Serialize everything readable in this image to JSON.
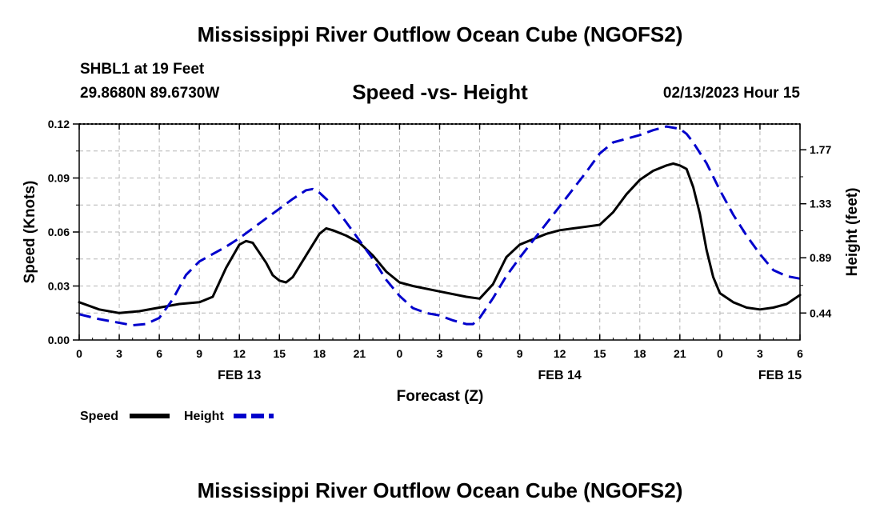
{
  "page": {
    "title": "Mississippi River Outflow Ocean Cube (NGOFS2)",
    "title_repeat": "Mississippi River Outflow Ocean Cube (NGOFS2)",
    "station": "SHBL1 at 19 Feet",
    "coords": "29.8680N  89.6730W",
    "subtitle": "Speed -vs- Height",
    "datestamp": "02/13/2023 Hour 15"
  },
  "colors": {
    "speed": "#000000",
    "height": "#0000cc",
    "grid": "#b4b4b4"
  },
  "chart_data": {
    "type": "line",
    "title": "Speed -vs- Height",
    "xlabel": "Forecast (Z)",
    "ylabel": "Speed (Knots)",
    "y2label": "Height (feet)",
    "x_hours_range": [
      0,
      54
    ],
    "ylim": [
      0,
      0.12
    ],
    "y2lim": [
      0.22,
      1.98
    ],
    "x_ticks": [
      {
        "h": 0,
        "label": "0"
      },
      {
        "h": 3,
        "label": "3"
      },
      {
        "h": 6,
        "label": "6"
      },
      {
        "h": 9,
        "label": "9"
      },
      {
        "h": 12,
        "label": "12"
      },
      {
        "h": 15,
        "label": "15"
      },
      {
        "h": 18,
        "label": "18"
      },
      {
        "h": 21,
        "label": "21"
      },
      {
        "h": 24,
        "label": "0"
      },
      {
        "h": 27,
        "label": "3"
      },
      {
        "h": 30,
        "label": "6"
      },
      {
        "h": 33,
        "label": "9"
      },
      {
        "h": 36,
        "label": "12"
      },
      {
        "h": 39,
        "label": "15"
      },
      {
        "h": 42,
        "label": "18"
      },
      {
        "h": 45,
        "label": "21"
      },
      {
        "h": 48,
        "label": "0"
      },
      {
        "h": 51,
        "label": "3"
      },
      {
        "h": 54,
        "label": "6"
      }
    ],
    "date_labels": [
      {
        "h": 12,
        "label": "FEB 13"
      },
      {
        "h": 36,
        "label": "FEB 14"
      },
      {
        "h": 52.5,
        "label": "FEB 15"
      }
    ],
    "y_ticks": [
      {
        "v": 0,
        "label": "0.00"
      },
      {
        "v": 0.03,
        "label": "0.03"
      },
      {
        "v": 0.06,
        "label": "0.06"
      },
      {
        "v": 0.09,
        "label": "0.09"
      },
      {
        "v": 0.12,
        "label": "0.12"
      }
    ],
    "y2_ticks": [
      {
        "v": 0.44,
        "label": "0.44"
      },
      {
        "v": 0.89,
        "label": "0.89"
      },
      {
        "v": 1.33,
        "label": "1.33"
      },
      {
        "v": 1.77,
        "label": "1.77"
      }
    ],
    "series": [
      {
        "name": "Speed",
        "axis": "left",
        "style": "solid",
        "points": [
          [
            0,
            0.021
          ],
          [
            1.5,
            0.017
          ],
          [
            3,
            0.015
          ],
          [
            4.5,
            0.016
          ],
          [
            6,
            0.018
          ],
          [
            7.5,
            0.02
          ],
          [
            9,
            0.021
          ],
          [
            10,
            0.024
          ],
          [
            11,
            0.04
          ],
          [
            12,
            0.053
          ],
          [
            12.5,
            0.055
          ],
          [
            13,
            0.054
          ],
          [
            14,
            0.043
          ],
          [
            14.5,
            0.036
          ],
          [
            15,
            0.033
          ],
          [
            15.5,
            0.032
          ],
          [
            16,
            0.035
          ],
          [
            17,
            0.047
          ],
          [
            18,
            0.059
          ],
          [
            18.5,
            0.062
          ],
          [
            19,
            0.061
          ],
          [
            20,
            0.058
          ],
          [
            21,
            0.054
          ],
          [
            22,
            0.047
          ],
          [
            23,
            0.038
          ],
          [
            24,
            0.032
          ],
          [
            25,
            0.03
          ],
          [
            27,
            0.027
          ],
          [
            29,
            0.024
          ],
          [
            30,
            0.023
          ],
          [
            31,
            0.031
          ],
          [
            32,
            0.046
          ],
          [
            33,
            0.053
          ],
          [
            34,
            0.056
          ],
          [
            35,
            0.059
          ],
          [
            36,
            0.061
          ],
          [
            37,
            0.062
          ],
          [
            38,
            0.063
          ],
          [
            39,
            0.064
          ],
          [
            40,
            0.071
          ],
          [
            41,
            0.081
          ],
          [
            42,
            0.089
          ],
          [
            43,
            0.094
          ],
          [
            44,
            0.097
          ],
          [
            44.5,
            0.098
          ],
          [
            45,
            0.097
          ],
          [
            45.5,
            0.095
          ],
          [
            46,
            0.085
          ],
          [
            46.5,
            0.07
          ],
          [
            47,
            0.05
          ],
          [
            47.5,
            0.035
          ],
          [
            48,
            0.026
          ],
          [
            49,
            0.021
          ],
          [
            50,
            0.018
          ],
          [
            51,
            0.017
          ],
          [
            52,
            0.018
          ],
          [
            53,
            0.02
          ],
          [
            54,
            0.025
          ]
        ]
      },
      {
        "name": "Height",
        "axis": "right",
        "style": "dashed",
        "points": [
          [
            0,
            0.43
          ],
          [
            1.5,
            0.39
          ],
          [
            3,
            0.36
          ],
          [
            4,
            0.34
          ],
          [
            5,
            0.35
          ],
          [
            6,
            0.4
          ],
          [
            7,
            0.55
          ],
          [
            8,
            0.75
          ],
          [
            9,
            0.86
          ],
          [
            10,
            0.92
          ],
          [
            11,
            0.98
          ],
          [
            12,
            1.05
          ],
          [
            13,
            1.13
          ],
          [
            14,
            1.21
          ],
          [
            15,
            1.29
          ],
          [
            16,
            1.37
          ],
          [
            17,
            1.44
          ],
          [
            17.5,
            1.45
          ],
          [
            18,
            1.42
          ],
          [
            19,
            1.32
          ],
          [
            20,
            1.18
          ],
          [
            21,
            1.03
          ],
          [
            22,
            0.88
          ],
          [
            23,
            0.71
          ],
          [
            24,
            0.58
          ],
          [
            25,
            0.48
          ],
          [
            26,
            0.44
          ],
          [
            27,
            0.42
          ],
          [
            28,
            0.38
          ],
          [
            29,
            0.35
          ],
          [
            29.5,
            0.35
          ],
          [
            30,
            0.4
          ],
          [
            31,
            0.56
          ],
          [
            32,
            0.74
          ],
          [
            33,
            0.89
          ],
          [
            34,
            1.03
          ],
          [
            35,
            1.17
          ],
          [
            36,
            1.31
          ],
          [
            37,
            1.45
          ],
          [
            38,
            1.59
          ],
          [
            39,
            1.74
          ],
          [
            40,
            1.83
          ],
          [
            41,
            1.86
          ],
          [
            42,
            1.89
          ],
          [
            43,
            1.93
          ],
          [
            44,
            1.96
          ],
          [
            45,
            1.94
          ],
          [
            45.5,
            1.9
          ],
          [
            46,
            1.83
          ],
          [
            47,
            1.66
          ],
          [
            48,
            1.44
          ],
          [
            49,
            1.24
          ],
          [
            50,
            1.07
          ],
          [
            51,
            0.92
          ],
          [
            52,
            0.79
          ],
          [
            53,
            0.74
          ],
          [
            54,
            0.72
          ]
        ]
      }
    ],
    "legend": [
      {
        "name": "Speed",
        "label": "Speed",
        "style": "solid"
      },
      {
        "name": "Height",
        "label": "Height",
        "style": "dashed"
      }
    ]
  }
}
